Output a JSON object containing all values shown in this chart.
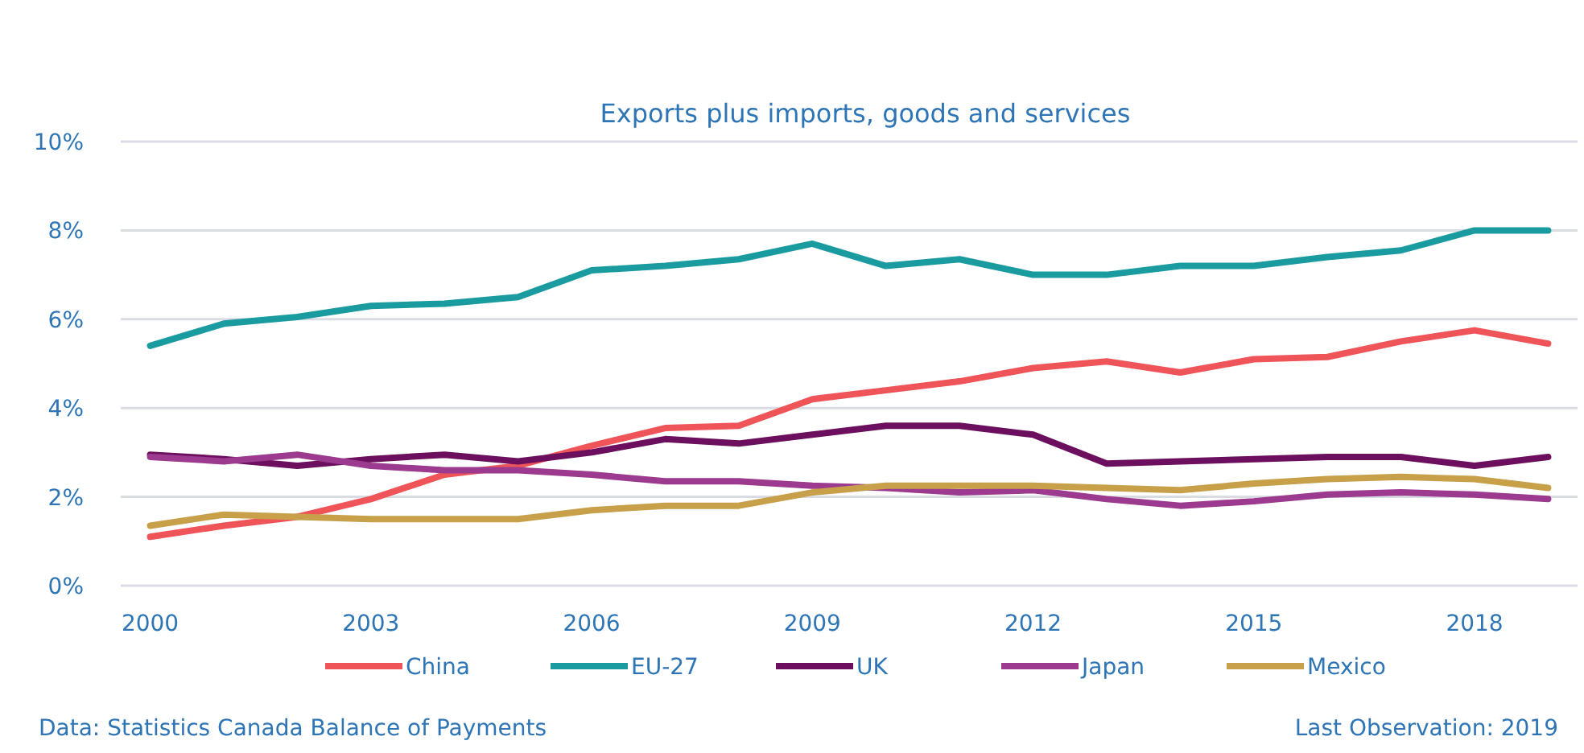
{
  "chart_data": {
    "type": "line",
    "title": "Exports plus imports, goods and services",
    "x": [
      2000,
      2001,
      2002,
      2003,
      2004,
      2005,
      2006,
      2007,
      2008,
      2009,
      2010,
      2011,
      2012,
      2013,
      2014,
      2015,
      2016,
      2017,
      2018,
      2019
    ],
    "series": [
      {
        "name": "China",
        "color": "#ef5459",
        "values": [
          1.1,
          1.35,
          1.55,
          1.95,
          2.5,
          2.7,
          3.15,
          3.55,
          3.6,
          4.2,
          4.4,
          4.6,
          4.9,
          5.05,
          4.8,
          5.1,
          5.15,
          5.5,
          5.75,
          5.45
        ]
      },
      {
        "name": "EU-27",
        "color": "#1a9ba0",
        "values": [
          5.4,
          5.9,
          6.05,
          6.3,
          6.35,
          6.5,
          7.1,
          7.2,
          7.35,
          7.7,
          7.2,
          7.35,
          7.0,
          7.0,
          7.2,
          7.2,
          7.4,
          7.55,
          8.0,
          8.0
        ]
      },
      {
        "name": "UK",
        "color": "#6b0f5e",
        "values": [
          2.95,
          2.85,
          2.7,
          2.85,
          2.95,
          2.8,
          3.0,
          3.3,
          3.2,
          3.4,
          3.6,
          3.6,
          3.4,
          2.75,
          2.8,
          2.85,
          2.9,
          2.9,
          2.7,
          2.9
        ]
      },
      {
        "name": "Japan",
        "color": "#9b3a8e",
        "values": [
          2.9,
          2.8,
          2.95,
          2.7,
          2.6,
          2.6,
          2.5,
          2.35,
          2.35,
          2.25,
          2.2,
          2.1,
          2.15,
          1.95,
          1.8,
          1.9,
          2.05,
          2.1,
          2.05,
          1.95
        ]
      },
      {
        "name": "Mexico",
        "color": "#c9a04a",
        "values": [
          1.35,
          1.6,
          1.55,
          1.5,
          1.5,
          1.5,
          1.7,
          1.8,
          1.8,
          2.1,
          2.25,
          2.25,
          2.25,
          2.2,
          2.15,
          2.3,
          2.4,
          2.45,
          2.4,
          2.2
        ]
      }
    ],
    "xlim": [
      1999.6,
      2019.4
    ],
    "xticks": [
      2000,
      2003,
      2006,
      2009,
      2012,
      2015,
      2018
    ],
    "ylim": [
      0,
      10
    ],
    "yticks": [
      {
        "value": 0,
        "label": "0%"
      },
      {
        "value": 2,
        "label": "2%"
      },
      {
        "value": 4,
        "label": "4%"
      },
      {
        "value": 6,
        "label": "6%"
      },
      {
        "value": 8,
        "label": "8%"
      },
      {
        "value": 10,
        "label": "10%"
      }
    ],
    "grid": "y",
    "legend": "bottom",
    "marker": "none",
    "line_style": "solid",
    "annotations": [
      "Data: Statistics Canada Balance of Payments",
      "Last Observation: 2019"
    ]
  }
}
